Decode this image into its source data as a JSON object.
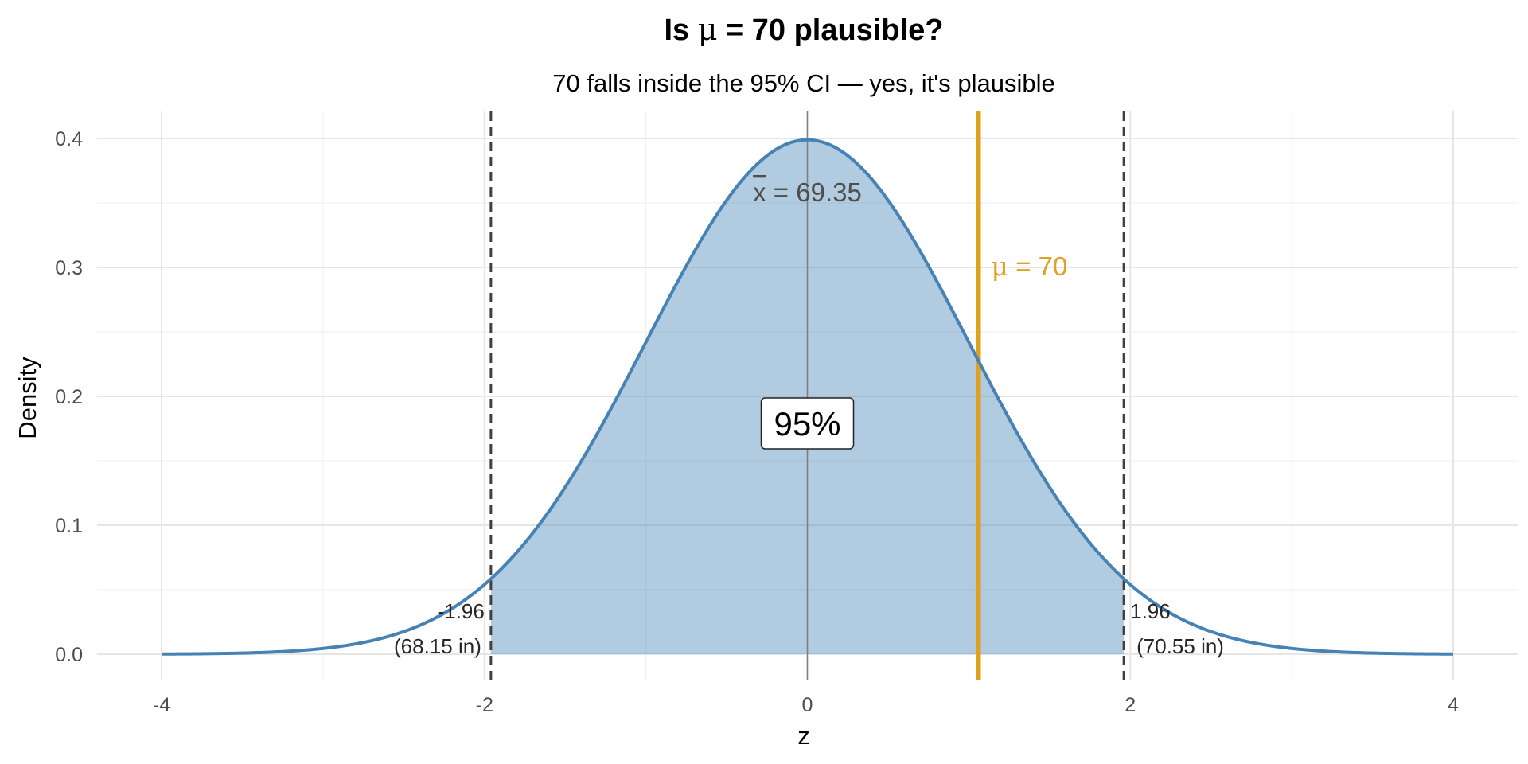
{
  "chart_data": {
    "type": "area",
    "title_prefix": "Is ",
    "title_symbol": "μ",
    "title_suffix": " = 70 plausible?",
    "subtitle": "70 falls inside the 95% CI — yes, it's plausible",
    "xlabel": "z",
    "ylabel": "Density",
    "xlim": [
      -4,
      4
    ],
    "ylim": [
      0,
      0.4
    ],
    "x_ticks": [
      -4,
      -2,
      0,
      2,
      4
    ],
    "x_tick_labels": [
      "-4",
      "-2",
      "0",
      "2",
      "4"
    ],
    "y_ticks": [
      0.0,
      0.1,
      0.2,
      0.3,
      0.4
    ],
    "y_tick_labels": [
      "0.0",
      "0.1",
      "0.2",
      "0.3",
      "0.4"
    ],
    "grid": true,
    "series": [
      {
        "type": "line",
        "distribution": "standard normal density",
        "x_range": [
          -4,
          4
        ],
        "color": "#4682b4"
      }
    ],
    "shaded_region": {
      "x_from": -1.96,
      "x_to": 1.96,
      "color": "#4682b4",
      "label": "95%"
    },
    "critical_lines": [
      {
        "x": -1.96,
        "label_z": "-1.96",
        "label_value": "(68.15 in)"
      },
      {
        "x": 1.96,
        "label_z": "1.96",
        "label_value": "(70.55 in)"
      }
    ],
    "center_line": {
      "x": 0,
      "label_symbol": "x",
      "label_rest": " = 69.35"
    },
    "mu_line": {
      "x": 1.06,
      "label_symbol": "μ",
      "label_rest": " = 70",
      "color": "#e0a020"
    }
  }
}
